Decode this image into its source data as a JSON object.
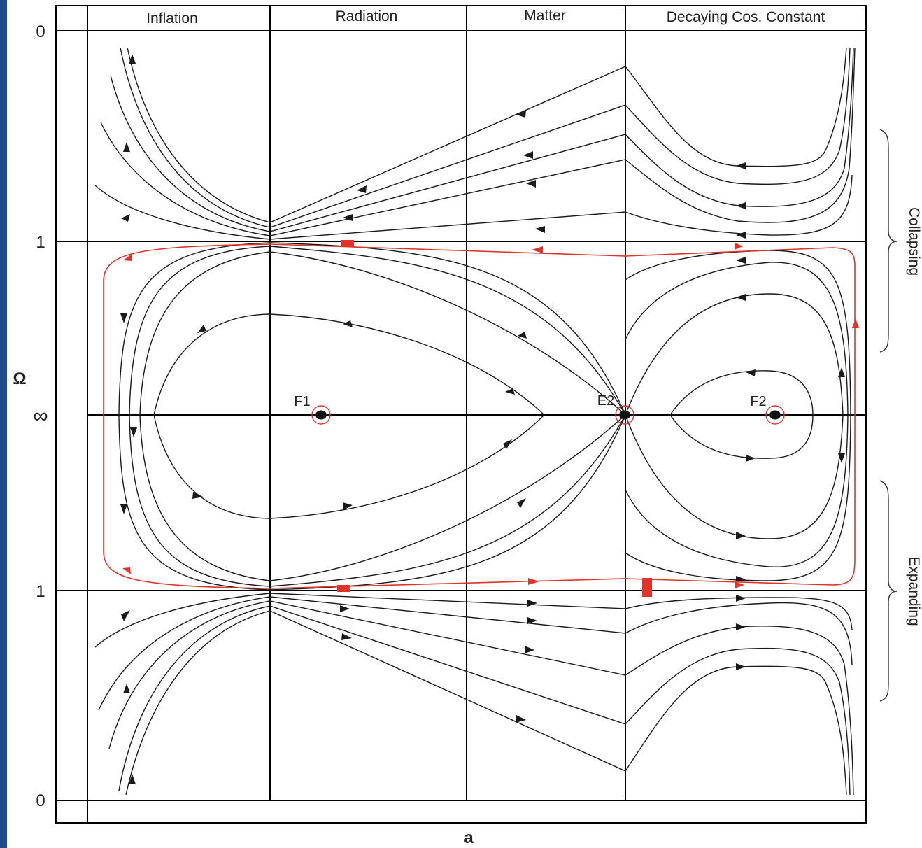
{
  "columns": [
    "Inflation",
    "Radiation",
    "Matter",
    "Decaying Cos. Constant"
  ],
  "y_ticks": [
    "0",
    "1",
    "∞",
    "1",
    "0"
  ],
  "y_axis_label": "Ω",
  "x_axis_label": "a",
  "fixed_points": [
    "F1",
    "E2",
    "F2"
  ],
  "brackets": [
    "Collapsing",
    "Expanding"
  ],
  "colors": {
    "trajectory": "#1a1a1a",
    "highlight": "#e0342a",
    "grid": "#000000",
    "sidebar": "#1e4d8c"
  }
}
